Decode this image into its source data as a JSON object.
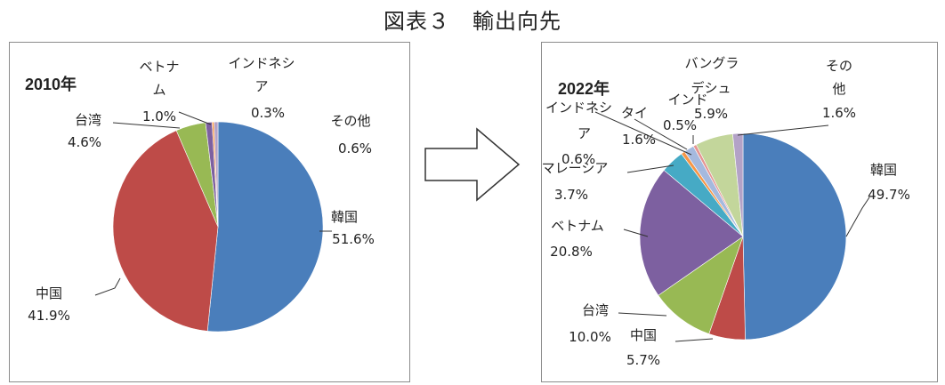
{
  "figure_title": "図表３　輸出向先",
  "colors": {
    "korea": "#4A7EBB",
    "china": "#BE4B48",
    "taiwan": "#98B954",
    "vietnam": "#7D60A0",
    "malaysia": "#46AAC5",
    "indonesia": "#F79646",
    "thailand": "#A5B9DE",
    "india": "#E59593",
    "bangladesh": "#C3D69B",
    "other": "#B3A2C7"
  },
  "chart_data": [
    {
      "type": "pie",
      "title": "2010年",
      "start": "12 o'clock, clockwise",
      "slices": [
        {
          "key": "korea",
          "label": "韓国",
          "value": 51.6,
          "display": "51.6%"
        },
        {
          "key": "china",
          "label": "中国",
          "value": 41.9,
          "display": "41.9%"
        },
        {
          "key": "taiwan",
          "label": "台湾",
          "value": 4.6,
          "display": "4.6%"
        },
        {
          "key": "vietnam",
          "label": "ベトナム",
          "value": 1.0,
          "display": "1.0%"
        },
        {
          "key": "indonesia",
          "label": "インドネシア",
          "value": 0.3,
          "display": "0.3%"
        },
        {
          "key": "other",
          "label": "その他",
          "value": 0.6,
          "display": "0.6%"
        }
      ]
    },
    {
      "type": "pie",
      "title": "2022年",
      "start": "12 o'clock, clockwise",
      "slices": [
        {
          "key": "korea",
          "label": "韓国",
          "value": 49.7,
          "display": "49.7%"
        },
        {
          "key": "china",
          "label": "中国",
          "value": 5.7,
          "display": "5.7%"
        },
        {
          "key": "taiwan",
          "label": "台湾",
          "value": 10.0,
          "display": "10.0%"
        },
        {
          "key": "vietnam",
          "label": "ベトナム",
          "value": 20.8,
          "display": "20.8%"
        },
        {
          "key": "malaysia",
          "label": "マレーシア",
          "value": 3.7,
          "display": "3.7%"
        },
        {
          "key": "indonesia",
          "label": "インドネシア",
          "value": 0.6,
          "display": "0.6%"
        },
        {
          "key": "thailand",
          "label": "タイ",
          "value": 1.6,
          "display": "1.6%"
        },
        {
          "key": "india",
          "label": "インド",
          "value": 0.5,
          "display": "0.5%"
        },
        {
          "key": "bangladesh",
          "label": "バングラデシュ",
          "value": 5.9,
          "display": "5.9%"
        },
        {
          "key": "other",
          "label": "その他",
          "value": 1.6,
          "display": "1.6%"
        }
      ]
    }
  ]
}
